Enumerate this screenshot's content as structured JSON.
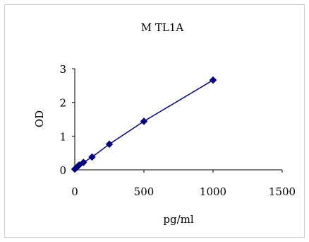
{
  "chart_data": {
    "type": "line",
    "title": "M TL1A",
    "xlabel": "pg/ml",
    "ylabel": "OD",
    "xlim": [
      0,
      1500
    ],
    "ylim": [
      0,
      3
    ],
    "x_ticks": [
      0,
      500,
      1000,
      1500
    ],
    "y_ticks": [
      0,
      1,
      2,
      3
    ],
    "x_tick_labels": [
      "0",
      "500",
      "1000",
      "1500"
    ],
    "y_tick_labels": [
      "0",
      "1",
      "2",
      "3"
    ],
    "grid": false,
    "legend": "none",
    "series": [
      {
        "marker": "diamond",
        "color": "#00007f",
        "x": [
          0,
          15.6,
          31.25,
          62.5,
          125,
          250,
          500,
          1000
        ],
        "y": [
          0.02,
          0.08,
          0.14,
          0.22,
          0.38,
          0.76,
          1.44,
          2.66
        ]
      }
    ]
  }
}
